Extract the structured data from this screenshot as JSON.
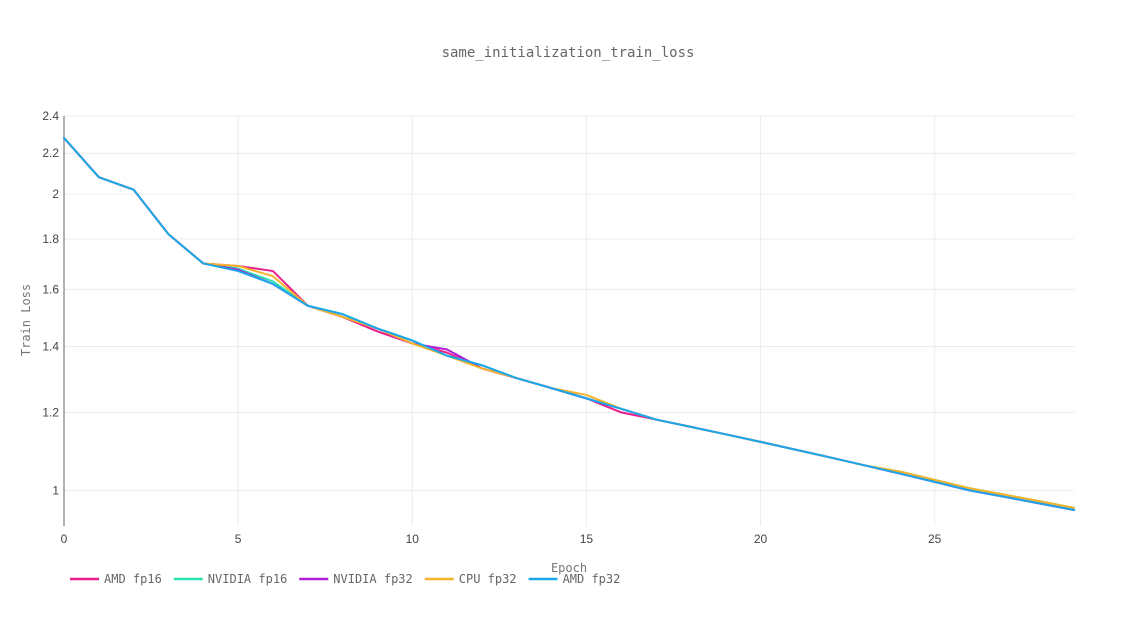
{
  "chart_data": {
    "type": "line",
    "title": "same_initialization_train_loss",
    "xlabel": "Epoch",
    "ylabel": "Train Loss",
    "xlim": [
      0,
      29
    ],
    "ylim": [
      0.92,
      2.4
    ],
    "y_scale": "log",
    "grid": true,
    "legend_position": "bottom-left",
    "x_ticks": [
      0,
      5,
      10,
      15,
      20,
      25
    ],
    "y_ticks": [
      1,
      1.2,
      1.4,
      1.6,
      1.8,
      2,
      2.2,
      2.4
    ],
    "x_tick_labels": [
      "0",
      "5",
      "10",
      "15",
      "20",
      "25"
    ],
    "y_tick_labels": [
      "1",
      "1.2",
      "1.4",
      "1.6",
      "1.8",
      "2",
      "2.2",
      "2.4"
    ],
    "x": [
      0,
      1,
      2,
      3,
      4,
      5,
      6,
      7,
      8,
      9,
      10,
      11,
      12,
      13,
      14,
      15,
      16,
      17,
      18,
      19,
      20,
      21,
      22,
      23,
      24,
      25,
      26,
      27,
      28,
      29
    ],
    "series": [
      {
        "name": "AMD fp16",
        "color": "#e91e8c",
        "values": [
          2.28,
          2.08,
          2.02,
          1.82,
          1.7,
          1.69,
          1.67,
          1.54,
          1.5,
          1.45,
          1.41,
          1.38,
          1.33,
          1.3,
          1.27,
          1.24,
          1.2,
          1.18,
          1.16,
          1.14,
          1.12,
          1.1,
          1.08,
          1.06,
          1.04,
          1.02,
          1.0,
          0.985,
          0.97,
          0.955
        ]
      },
      {
        "name": "NVIDIA fp16",
        "color": "#2de0b0",
        "values": [
          2.28,
          2.08,
          2.02,
          1.82,
          1.7,
          1.68,
          1.63,
          1.54,
          1.51,
          1.46,
          1.42,
          1.37,
          1.34,
          1.3,
          1.27,
          1.24,
          1.21,
          1.18,
          1.16,
          1.14,
          1.12,
          1.1,
          1.08,
          1.06,
          1.045,
          1.025,
          1.005,
          0.99,
          0.975,
          0.96
        ]
      },
      {
        "name": "NVIDIA fp32",
        "color": "#b01bd4",
        "values": [
          2.28,
          2.08,
          2.02,
          1.82,
          1.7,
          1.675,
          1.62,
          1.54,
          1.5,
          1.46,
          1.41,
          1.39,
          1.33,
          1.3,
          1.27,
          1.24,
          1.21,
          1.18,
          1.16,
          1.14,
          1.12,
          1.1,
          1.08,
          1.06,
          1.04,
          1.02,
          1.0,
          0.985,
          0.97,
          0.955
        ]
      },
      {
        "name": "CPU fp32",
        "color": "#f5b32a",
        "values": [
          2.28,
          2.08,
          2.02,
          1.82,
          1.7,
          1.69,
          1.65,
          1.54,
          1.5,
          1.46,
          1.41,
          1.37,
          1.33,
          1.3,
          1.27,
          1.25,
          1.21,
          1.18,
          1.16,
          1.14,
          1.12,
          1.1,
          1.08,
          1.06,
          1.045,
          1.025,
          1.005,
          0.99,
          0.975,
          0.96
        ]
      },
      {
        "name": "AMD fp32",
        "color": "#1aa7ec",
        "values": [
          2.28,
          2.08,
          2.02,
          1.82,
          1.7,
          1.67,
          1.62,
          1.54,
          1.51,
          1.46,
          1.42,
          1.37,
          1.34,
          1.3,
          1.27,
          1.24,
          1.21,
          1.18,
          1.16,
          1.14,
          1.12,
          1.1,
          1.08,
          1.06,
          1.04,
          1.02,
          1.0,
          0.985,
          0.97,
          0.955
        ]
      }
    ]
  }
}
